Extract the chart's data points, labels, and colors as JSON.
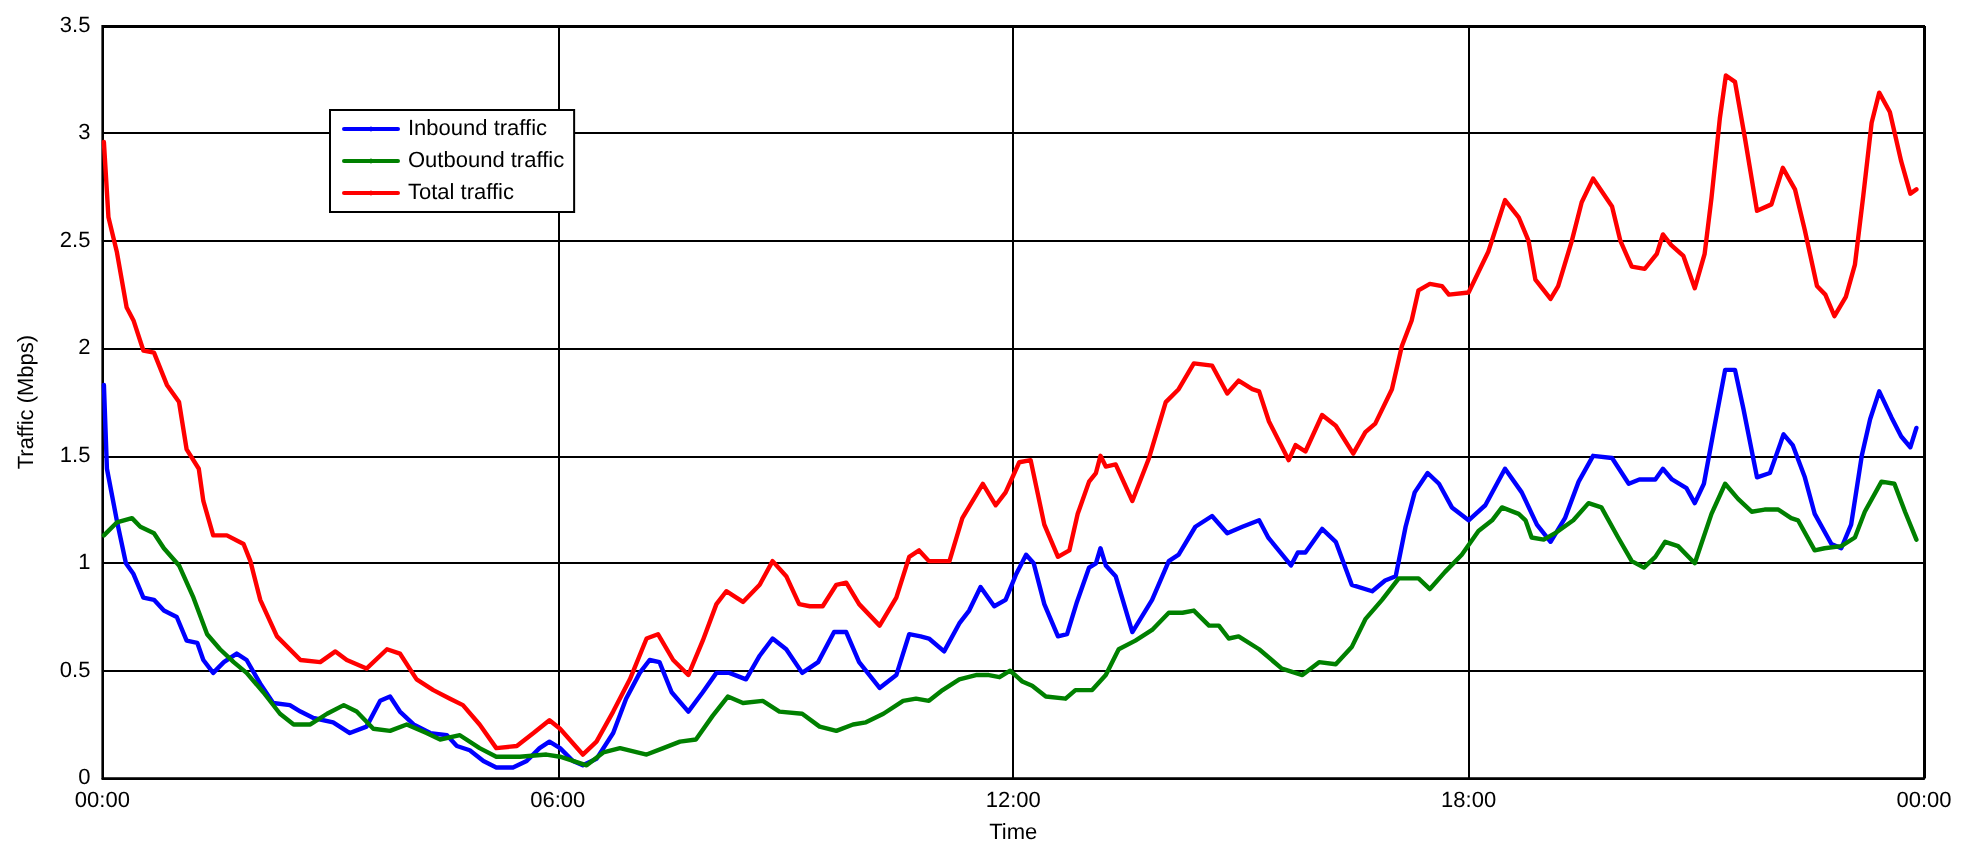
{
  "chart_data": {
    "type": "line",
    "xlabel": "Time",
    "ylabel": "Traffic (Mbps)",
    "xlim": [
      0,
      24
    ],
    "xticks": [
      {
        "value": 0,
        "label": "00:00"
      },
      {
        "value": 6,
        "label": "06:00"
      },
      {
        "value": 12,
        "label": "12:00"
      },
      {
        "value": 18,
        "label": "18:00"
      },
      {
        "value": 24,
        "label": "00:00"
      }
    ],
    "ylim": [
      0,
      3.5
    ],
    "yticks": [
      0,
      0.5,
      1,
      1.5,
      2,
      2.5,
      3,
      3.5
    ],
    "grid": true,
    "legend": "top left",
    "marker": "none",
    "line_style": "solid",
    "series": [
      {
        "name": "Inbound traffic",
        "color": "#0000ff",
        "x": [
          0.02,
          0.06,
          0.19,
          0.31,
          0.41,
          0.54,
          0.68,
          0.81,
          0.98,
          1.11,
          1.25,
          1.33,
          1.46,
          1.6,
          1.77,
          1.9,
          2.08,
          2.25,
          2.47,
          2.61,
          2.78,
          3.04,
          3.26,
          3.48,
          3.66,
          3.79,
          3.92,
          4.1,
          4.32,
          4.54,
          4.67,
          4.84,
          5.02,
          5.19,
          5.41,
          5.59,
          5.76,
          5.89,
          6.03,
          6.2,
          6.33,
          6.51,
          6.73,
          6.9,
          7.08,
          7.21,
          7.34,
          7.5,
          7.72,
          7.91,
          8.09,
          8.26,
          8.48,
          8.66,
          8.83,
          9.01,
          9.22,
          9.43,
          9.64,
          9.8,
          9.97,
          10.24,
          10.46,
          10.63,
          10.78,
          10.89,
          11.09,
          11.29,
          11.42,
          11.57,
          11.75,
          11.9,
          12.04,
          12.17,
          12.27,
          12.41,
          12.59,
          12.71,
          12.84,
          13,
          13.09,
          13.15,
          13.22,
          13.35,
          13.57,
          13.83,
          14.05,
          14.18,
          14.4,
          14.62,
          14.82,
          15.02,
          15.24,
          15.36,
          15.66,
          15.75,
          15.85,
          16.07,
          16.25,
          16.46,
          16.73,
          16.9,
          17.04,
          17.17,
          17.29,
          17.46,
          17.61,
          17.78,
          18,
          18.22,
          18.48,
          18.7,
          18.9,
          19.08,
          19.27,
          19.45,
          19.64,
          19.89,
          20.11,
          20.25,
          20.46,
          20.56,
          20.68,
          20.87,
          20.98,
          21.1,
          21.22,
          21.38,
          21.51,
          21.62,
          21.8,
          21.97,
          22.15,
          22.27,
          22.43,
          22.56,
          22.78,
          22.91,
          23.04,
          23.18,
          23.29,
          23.41,
          23.57,
          23.7,
          23.82,
          23.9
        ],
        "values": [
          1.83,
          1.44,
          1.2,
          1,
          0.95,
          0.84,
          0.83,
          0.78,
          0.75,
          0.64,
          0.63,
          0.55,
          0.49,
          0.54,
          0.58,
          0.55,
          0.44,
          0.35,
          0.34,
          0.31,
          0.28,
          0.26,
          0.21,
          0.24,
          0.36,
          0.38,
          0.31,
          0.25,
          0.21,
          0.2,
          0.15,
          0.13,
          0.08,
          0.05,
          0.05,
          0.08,
          0.14,
          0.17,
          0.14,
          0.08,
          0.06,
          0.09,
          0.21,
          0.37,
          0.49,
          0.55,
          0.54,
          0.4,
          0.31,
          0.4,
          0.49,
          0.49,
          0.46,
          0.57,
          0.65,
          0.6,
          0.49,
          0.54,
          0.68,
          0.68,
          0.54,
          0.42,
          0.48,
          0.67,
          0.66,
          0.65,
          0.59,
          0.72,
          0.78,
          0.89,
          0.8,
          0.83,
          0.95,
          1.04,
          1,
          0.81,
          0.66,
          0.67,
          0.82,
          0.98,
          1,
          1.07,
          0.99,
          0.94,
          0.68,
          0.83,
          1.01,
          1.04,
          1.17,
          1.22,
          1.14,
          1.17,
          1.2,
          1.12,
          0.99,
          1.05,
          1.05,
          1.16,
          1.1,
          0.9,
          0.87,
          0.92,
          0.94,
          1.17,
          1.33,
          1.42,
          1.37,
          1.26,
          1.2,
          1.27,
          1.44,
          1.33,
          1.18,
          1.1,
          1.21,
          1.38,
          1.5,
          1.49,
          1.37,
          1.39,
          1.39,
          1.44,
          1.39,
          1.35,
          1.28,
          1.37,
          1.6,
          1.9,
          1.9,
          1.72,
          1.4,
          1.42,
          1.6,
          1.55,
          1.4,
          1.23,
          1.09,
          1.07,
          1.18,
          1.5,
          1.67,
          1.8,
          1.68,
          1.59,
          1.54,
          1.63
        ]
      },
      {
        "name": "Outbound traffic",
        "color": "#008000",
        "x": [
          0.02,
          0.19,
          0.39,
          0.5,
          0.68,
          0.81,
          1.01,
          1.2,
          1.38,
          1.55,
          1.73,
          1.9,
          2.12,
          2.34,
          2.52,
          2.74,
          2.96,
          3.18,
          3.35,
          3.57,
          3.79,
          4.01,
          4.27,
          4.45,
          4.71,
          4.97,
          5.19,
          5.5,
          5.85,
          6.03,
          6.38,
          6.6,
          6.82,
          7.17,
          7.39,
          7.61,
          7.82,
          8.04,
          8.24,
          8.44,
          8.7,
          8.92,
          9.22,
          9.45,
          9.67,
          9.89,
          10.06,
          10.29,
          10.55,
          10.72,
          10.89,
          11.07,
          11.29,
          11.51,
          11.68,
          11.82,
          11.96,
          12.12,
          12.25,
          12.43,
          12.69,
          12.82,
          13.04,
          13.22,
          13.39,
          13.61,
          13.83,
          14.05,
          14.23,
          14.38,
          14.58,
          14.71,
          14.84,
          14.97,
          15.24,
          15.54,
          15.81,
          16.03,
          16.25,
          16.46,
          16.64,
          16.86,
          17.08,
          17.34,
          17.49,
          17.69,
          17.91,
          18.13,
          18.31,
          18.44,
          18.66,
          18.75,
          18.83,
          18.99,
          19.14,
          19.38,
          19.58,
          19.75,
          19.97,
          20.15,
          20.31,
          20.46,
          20.59,
          20.76,
          20.98,
          21.2,
          21.38,
          21.55,
          21.73,
          21.9,
          22.08,
          22.25,
          22.34,
          22.56,
          22.69,
          22.91,
          23.09,
          23.22,
          23.44,
          23.61,
          23.75,
          23.9
        ],
        "values": [
          1.13,
          1.19,
          1.21,
          1.17,
          1.14,
          1.07,
          0.99,
          0.84,
          0.67,
          0.6,
          0.54,
          0.49,
          0.4,
          0.3,
          0.25,
          0.25,
          0.3,
          0.34,
          0.31,
          0.23,
          0.22,
          0.25,
          0.21,
          0.18,
          0.2,
          0.14,
          0.1,
          0.1,
          0.11,
          0.1,
          0.06,
          0.12,
          0.14,
          0.11,
          0.14,
          0.17,
          0.18,
          0.29,
          0.38,
          0.35,
          0.36,
          0.31,
          0.3,
          0.24,
          0.22,
          0.25,
          0.26,
          0.3,
          0.36,
          0.37,
          0.36,
          0.41,
          0.46,
          0.48,
          0.48,
          0.47,
          0.5,
          0.45,
          0.43,
          0.38,
          0.37,
          0.41,
          0.41,
          0.48,
          0.6,
          0.64,
          0.69,
          0.77,
          0.77,
          0.78,
          0.71,
          0.71,
          0.65,
          0.66,
          0.6,
          0.51,
          0.48,
          0.54,
          0.53,
          0.61,
          0.74,
          0.83,
          0.93,
          0.93,
          0.88,
          0.96,
          1.04,
          1.15,
          1.2,
          1.26,
          1.23,
          1.2,
          1.12,
          1.11,
          1.14,
          1.2,
          1.28,
          1.26,
          1.12,
          1.01,
          0.98,
          1.03,
          1.1,
          1.08,
          1,
          1.23,
          1.37,
          1.3,
          1.24,
          1.25,
          1.25,
          1.21,
          1.2,
          1.06,
          1.07,
          1.08,
          1.12,
          1.24,
          1.38,
          1.37,
          1.24,
          1.11
        ]
      },
      {
        "name": "Total traffic",
        "color": "#ff0000",
        "x": [
          0.02,
          0.08,
          0.19,
          0.32,
          0.41,
          0.54,
          0.68,
          0.85,
          1.01,
          1.11,
          1.27,
          1.33,
          1.46,
          1.64,
          1.86,
          1.95,
          2.08,
          2.3,
          2.61,
          2.87,
          3.07,
          3.22,
          3.48,
          3.75,
          3.92,
          4.14,
          4.36,
          4.58,
          4.75,
          4.97,
          5.19,
          5.46,
          5.68,
          5.89,
          6.03,
          6.33,
          6.51,
          6.73,
          6.95,
          7.17,
          7.32,
          7.52,
          7.72,
          7.91,
          8.09,
          8.22,
          8.44,
          8.66,
          8.83,
          9.01,
          9.18,
          9.32,
          9.49,
          9.67,
          9.8,
          9.97,
          10.24,
          10.46,
          10.63,
          10.76,
          10.89,
          11.16,
          11.33,
          11.6,
          11.77,
          11.9,
          12.08,
          12.23,
          12.41,
          12.59,
          12.74,
          12.85,
          13,
          13.09,
          13.15,
          13.22,
          13.35,
          13.57,
          13.79,
          14.01,
          14.18,
          14.38,
          14.62,
          14.82,
          14.97,
          15.15,
          15.24,
          15.37,
          15.63,
          15.72,
          15.85,
          16.07,
          16.25,
          16.48,
          16.64,
          16.77,
          16.99,
          17.12,
          17.25,
          17.34,
          17.49,
          17.65,
          17.74,
          18,
          18.26,
          18.48,
          18.66,
          18.79,
          18.88,
          19.08,
          19.18,
          19.36,
          19.49,
          19.64,
          19.89,
          20,
          20.15,
          20.32,
          20.48,
          20.56,
          20.67,
          20.83,
          20.98,
          21.11,
          21.2,
          21.31,
          21.39,
          21.51,
          21.64,
          21.8,
          21.99,
          22.14,
          22.3,
          22.43,
          22.59,
          22.7,
          22.82,
          22.97,
          23.09,
          23.2,
          23.31,
          23.41,
          23.55,
          23.7,
          23.82,
          23.9
        ],
        "values": [
          2.96,
          2.61,
          2.45,
          2.19,
          2.13,
          1.99,
          1.98,
          1.83,
          1.75,
          1.53,
          1.44,
          1.29,
          1.13,
          1.13,
          1.09,
          1.01,
          0.83,
          0.66,
          0.55,
          0.54,
          0.59,
          0.55,
          0.51,
          0.6,
          0.58,
          0.46,
          0.41,
          0.37,
          0.34,
          0.25,
          0.14,
          0.15,
          0.21,
          0.27,
          0.23,
          0.11,
          0.17,
          0.31,
          0.46,
          0.65,
          0.67,
          0.55,
          0.48,
          0.64,
          0.81,
          0.87,
          0.82,
          0.9,
          1.01,
          0.94,
          0.81,
          0.8,
          0.8,
          0.9,
          0.91,
          0.81,
          0.71,
          0.84,
          1.03,
          1.06,
          1.01,
          1.01,
          1.21,
          1.37,
          1.27,
          1.33,
          1.47,
          1.48,
          1.18,
          1.03,
          1.06,
          1.23,
          1.38,
          1.42,
          1.5,
          1.45,
          1.46,
          1.29,
          1.49,
          1.75,
          1.81,
          1.93,
          1.92,
          1.79,
          1.85,
          1.81,
          1.8,
          1.66,
          1.48,
          1.55,
          1.52,
          1.69,
          1.64,
          1.51,
          1.61,
          1.65,
          1.81,
          2.01,
          2.13,
          2.27,
          2.3,
          2.29,
          2.25,
          2.26,
          2.45,
          2.69,
          2.61,
          2.5,
          2.32,
          2.23,
          2.29,
          2.5,
          2.68,
          2.79,
          2.66,
          2.5,
          2.38,
          2.37,
          2.44,
          2.53,
          2.48,
          2.43,
          2.28,
          2.44,
          2.7,
          3.07,
          3.27,
          3.24,
          2.98,
          2.64,
          2.67,
          2.84,
          2.74,
          2.55,
          2.29,
          2.25,
          2.15,
          2.24,
          2.39,
          2.71,
          3.05,
          3.19,
          3.1,
          2.87,
          2.72,
          2.74
        ]
      }
    ]
  }
}
